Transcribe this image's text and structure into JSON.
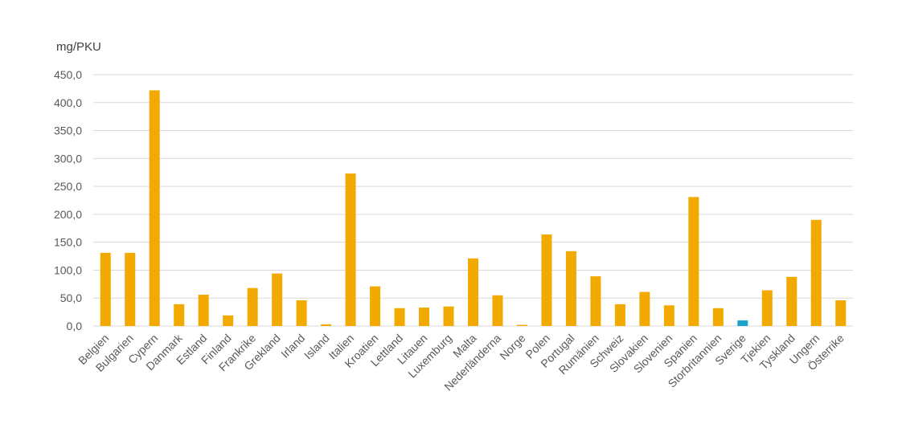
{
  "chart_data": {
    "type": "bar",
    "ylabel": "mg/PKU",
    "ylim": [
      0,
      450
    ],
    "yticks": [
      "0,0",
      "50,0",
      "100,0",
      "150,0",
      "200,0",
      "250,0",
      "300,0",
      "350,0",
      "400,0",
      "450,0"
    ],
    "grid": true,
    "categories": [
      "Belgien",
      "Bulgarien",
      "Cypern",
      "Danmark",
      "Estland",
      "Finland",
      "Frankrike",
      "Grekland",
      "Irland",
      "Island",
      "Italien",
      "Kroatien",
      "Lettland",
      "Litauen",
      "Luxemburg",
      "Malta",
      "Nederländerna",
      "Norge",
      "Polen",
      "Portugal",
      "Rumänien",
      "Schweiz",
      "Slovakien",
      "Slovenien",
      "Spanien",
      "Storbritannien",
      "Sverige",
      "Tjekien",
      "Tyskland",
      "Ungern",
      "Österrike"
    ],
    "values": [
      131,
      131,
      422,
      39,
      56,
      19,
      68,
      94,
      46,
      3,
      273,
      71,
      32,
      33,
      35,
      121,
      55,
      2,
      164,
      134,
      89,
      39,
      61,
      37,
      231,
      32,
      10,
      64,
      88,
      190,
      46
    ],
    "highlight": "Sverige",
    "colors": {
      "bar": "#F2A900",
      "highlight": "#1AA3CC",
      "grid": "#D9D9D9"
    }
  }
}
